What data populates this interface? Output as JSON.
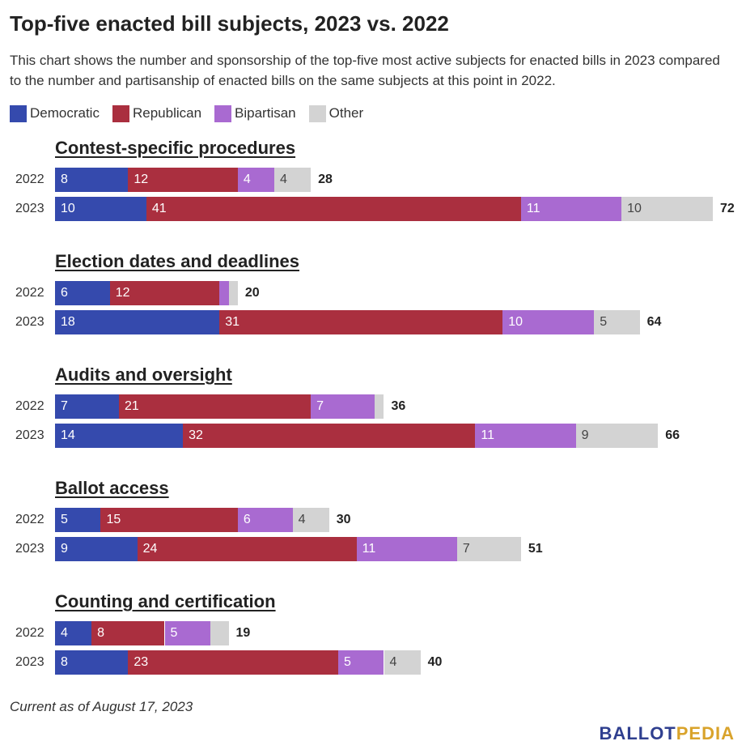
{
  "title": "Top-five enacted bill subjects, 2023 vs. 2022",
  "subtitle": "This chart shows the number and sponsorship of the top-five most active subjects for enacted bills in 2023 compared to the number and partisanship of enacted bills on the same subjects at this point in 2022.",
  "legend": [
    {
      "label": "Democratic",
      "color": "#354aad"
    },
    {
      "label": "Republican",
      "color": "#aa2f3f"
    },
    {
      "label": "Bipartisan",
      "color": "#a96ad1"
    },
    {
      "label": "Other",
      "color": "#d3d3d3"
    }
  ],
  "footnote": "Current as of August 17, 2023",
  "logo": {
    "part1": "BALLOT",
    "part2": "PEDIA",
    "color1": "#2f3f8f",
    "color2": "#d9a32b"
  },
  "chart_data": {
    "type": "bar",
    "stacked": true,
    "orientation": "horizontal",
    "series_names": [
      "Democratic",
      "Republican",
      "Bipartisan",
      "Other"
    ],
    "groups": [
      {
        "subject": "Contest-specific procedures",
        "rows": [
          {
            "year": "2022",
            "values": [
              8,
              12,
              4,
              4
            ],
            "labels": [
              "8",
              "12",
              "4",
              "4"
            ],
            "total": 28
          },
          {
            "year": "2023",
            "values": [
              10,
              41,
              11,
              10
            ],
            "labels": [
              "10",
              "41",
              "11",
              "10"
            ],
            "total": 72
          }
        ]
      },
      {
        "subject": "Election dates and deadlines",
        "rows": [
          {
            "year": "2022",
            "values": [
              6,
              12,
              1,
              1
            ],
            "labels": [
              "6",
              "12",
              "",
              ""
            ],
            "total": 20
          },
          {
            "year": "2023",
            "values": [
              18,
              31,
              10,
              5
            ],
            "labels": [
              "18",
              "31",
              "10",
              "5"
            ],
            "total": 64
          }
        ]
      },
      {
        "subject": "Audits and oversight",
        "rows": [
          {
            "year": "2022",
            "values": [
              7,
              21,
              7,
              1
            ],
            "labels": [
              "7",
              "21",
              "7",
              ""
            ],
            "total": 36
          },
          {
            "year": "2023",
            "values": [
              14,
              32,
              11,
              9
            ],
            "labels": [
              "14",
              "32",
              "11",
              "9"
            ],
            "total": 66
          }
        ]
      },
      {
        "subject": "Ballot access",
        "rows": [
          {
            "year": "2022",
            "values": [
              5,
              15,
              6,
              4
            ],
            "labels": [
              "5",
              "15",
              "6",
              "4"
            ],
            "total": 30
          },
          {
            "year": "2023",
            "values": [
              9,
              24,
              11,
              7
            ],
            "labels": [
              "9",
              "24",
              "11",
              "7"
            ],
            "total": 51
          }
        ]
      },
      {
        "subject": "Counting and certification",
        "rows": [
          {
            "year": "2022",
            "values": [
              4,
              8,
              5,
              2
            ],
            "labels": [
              "4",
              "8",
              "5",
              ""
            ],
            "total": 19
          },
          {
            "year": "2023",
            "values": [
              8,
              23,
              5,
              4
            ],
            "labels": [
              "8",
              "23",
              "5",
              "4"
            ],
            "total": 40
          }
        ]
      }
    ],
    "xlim": [
      0,
      72
    ]
  }
}
